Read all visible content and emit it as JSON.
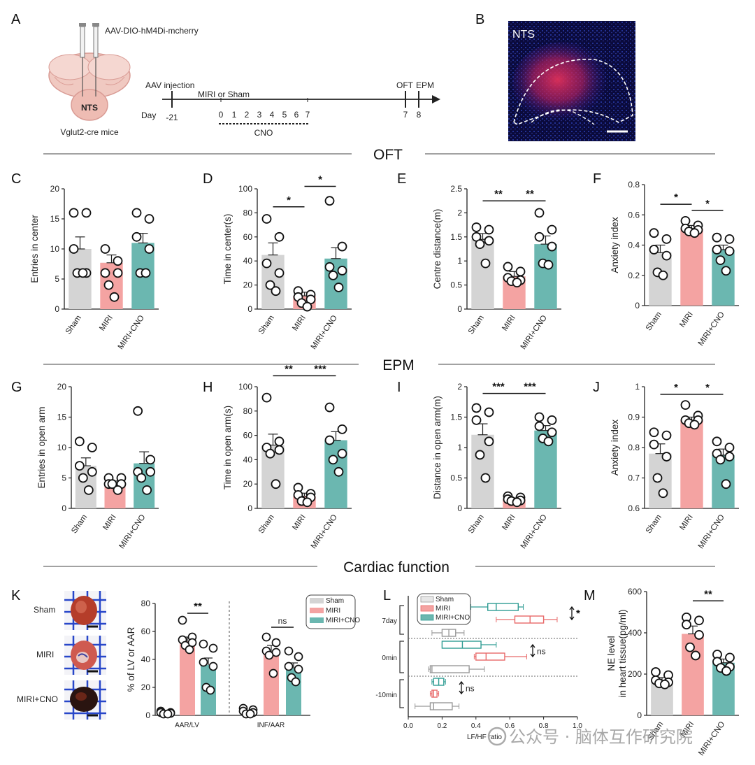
{
  "panel_letters": [
    "A",
    "B",
    "C",
    "D",
    "E",
    "F",
    "G",
    "H",
    "I",
    "J",
    "K",
    "L",
    "M"
  ],
  "sections": {
    "oft": "OFT",
    "epm": "EPM",
    "cardiac": "Cardiac function"
  },
  "schematic": {
    "virus": "AAV-DIO-hM4Di-mcherry",
    "region": "NTS",
    "mouse_line": "Vglut2-cre mice",
    "injection": "AAV injection",
    "model": "MIRI or Sham",
    "day_label": "Day",
    "days": [
      "-21",
      "0",
      "1",
      "2",
      "3",
      "4",
      "5",
      "6",
      "7",
      "7",
      "8"
    ],
    "cno": "CNO",
    "oft": "OFT",
    "epm": "EPM"
  },
  "micrograph": {
    "label": "NTS"
  },
  "heart_images": {
    "labels": [
      "Sham",
      "MIRI",
      "MIRI+CNO"
    ]
  },
  "colors": {
    "sham": "#d4d4d4",
    "miri": "#f4a3a2",
    "cno": "#6bb7b0",
    "miri_line": "#e86a6a",
    "cno_line": "#2f9c93",
    "axis": "#222222"
  },
  "watermark": "公众号 · 脑体互作研究院",
  "chart_data": [
    {
      "id": "C",
      "type": "bar",
      "categories": [
        "Sham",
        "MIRI",
        "MIRI+CNO"
      ],
      "ylabel": "Entries in center",
      "ylim": [
        0,
        20
      ],
      "yticks": [
        0,
        5,
        10,
        15,
        20
      ],
      "means": [
        10,
        7.7,
        11
      ],
      "sem": [
        2,
        1.3,
        1.6
      ],
      "points": [
        [
          16,
          16,
          10,
          6,
          6,
          6
        ],
        [
          10,
          8,
          6,
          6,
          4,
          2
        ],
        [
          16,
          15,
          12,
          10,
          6,
          6
        ]
      ],
      "sig": []
    },
    {
      "id": "D",
      "type": "bar",
      "categories": [
        "Sham",
        "MIRI",
        "MIRI+CNO"
      ],
      "ylabel": "Time in center(s)",
      "ylim": [
        0,
        100
      ],
      "yticks": [
        0,
        20,
        40,
        60,
        80,
        100
      ],
      "means": [
        45,
        11,
        42
      ],
      "sem": [
        10,
        3,
        9
      ],
      "points": [
        [
          75,
          60,
          38,
          30,
          20,
          15
        ],
        [
          15,
          12,
          10,
          8,
          5,
          2
        ],
        [
          90,
          52,
          35,
          32,
          28,
          18
        ]
      ],
      "sig": [
        {
          "from": 0,
          "to": 1,
          "label": "*",
          "y": 85
        },
        {
          "from": 1,
          "to": 2,
          "label": "*",
          "y": 102
        }
      ]
    },
    {
      "id": "E",
      "type": "bar",
      "categories": [
        "Sham",
        "MIRI",
        "MIRI+CNO"
      ],
      "ylabel": "Centre distance(m)",
      "ylim": [
        0,
        2.5
      ],
      "yticks": [
        0,
        0.5,
        1.0,
        1.5,
        2.0,
        2.5
      ],
      "means": [
        1.45,
        0.68,
        1.35
      ],
      "sem": [
        0.12,
        0.1,
        0.17
      ],
      "points": [
        [
          1.7,
          1.65,
          1.5,
          1.42,
          1.35,
          0.95
        ],
        [
          0.88,
          0.78,
          0.65,
          0.6,
          0.58,
          0.55
        ],
        [
          2.0,
          1.65,
          1.5,
          1.3,
          0.95,
          0.92
        ]
      ],
      "sig": [
        {
          "from": 0,
          "to": 1,
          "label": "**",
          "y": 2.25
        },
        {
          "from": 1,
          "to": 2,
          "label": "**",
          "y": 2.25
        }
      ]
    },
    {
      "id": "F",
      "type": "bar",
      "categories": [
        "Sham",
        "MIRI",
        "MIRI+CNO"
      ],
      "ylabel": "Anxiety index",
      "ylim": [
        0,
        0.8
      ],
      "yticks": [
        0,
        0.2,
        0.4,
        0.6,
        0.8
      ],
      "means": [
        0.35,
        0.51,
        0.37
      ],
      "sem": [
        0.05,
        0.02,
        0.03
      ],
      "points": [
        [
          0.48,
          0.44,
          0.37,
          0.33,
          0.22,
          0.2
        ],
        [
          0.56,
          0.53,
          0.51,
          0.5,
          0.49,
          0.48
        ],
        [
          0.45,
          0.44,
          0.37,
          0.36,
          0.3,
          0.23
        ]
      ],
      "sig": [
        {
          "from": 0,
          "to": 1,
          "label": "*",
          "y": 0.67
        },
        {
          "from": 1,
          "to": 2,
          "label": "*",
          "y": 0.63
        }
      ]
    },
    {
      "id": "G",
      "type": "bar",
      "categories": [
        "Sham",
        "MIRI",
        "MIRI+CNO"
      ],
      "ylabel": "Entries in open arm",
      "ylim": [
        0,
        20
      ],
      "yticks": [
        0,
        5,
        10,
        15,
        20
      ],
      "means": [
        7,
        4.1,
        7.4
      ],
      "sem": [
        1.3,
        0.4,
        1.9
      ],
      "points": [
        [
          11,
          10,
          7,
          6,
          5,
          3
        ],
        [
          5,
          5,
          4,
          4,
          4,
          3
        ],
        [
          16,
          8,
          6,
          6,
          5,
          3
        ]
      ],
      "sig": []
    },
    {
      "id": "H",
      "type": "bar",
      "categories": [
        "Sham",
        "MIRI",
        "MIRI+CNO"
      ],
      "ylabel": "Time in open arm(s)",
      "ylim": [
        0,
        100
      ],
      "yticks": [
        0,
        20,
        40,
        60,
        80,
        100
      ],
      "means": [
        52,
        10,
        56
      ],
      "sem": [
        9,
        2.5,
        7
      ],
      "points": [
        [
          91,
          55,
          50,
          48,
          45,
          20
        ],
        [
          17,
          12,
          11,
          9,
          6,
          5
        ],
        [
          83,
          65,
          56,
          45,
          40,
          30
        ]
      ],
      "sig": [
        {
          "from": 0,
          "to": 1,
          "label": "**",
          "y": 109
        },
        {
          "from": 1,
          "to": 2,
          "label": "***",
          "y": 109
        }
      ]
    },
    {
      "id": "I",
      "type": "bar",
      "categories": [
        "Sham",
        "MIRI",
        "MIRI+CNO"
      ],
      "ylabel": "Distance in open arm(m)",
      "ylim": [
        0,
        2.0
      ],
      "yticks": [
        0,
        0.5,
        1.0,
        1.5,
        2.0
      ],
      "means": [
        1.21,
        0.15,
        1.28
      ],
      "sem": [
        0.18,
        0.02,
        0.08
      ],
      "points": [
        [
          1.65,
          1.58,
          1.45,
          1.1,
          0.88,
          0.5
        ],
        [
          0.2,
          0.18,
          0.15,
          0.13,
          0.12,
          0.1
        ],
        [
          1.5,
          1.45,
          1.35,
          1.25,
          1.15,
          1.1
        ]
      ],
      "sig": [
        {
          "from": 0,
          "to": 1,
          "label": "***",
          "y": 1.89
        },
        {
          "from": 1,
          "to": 2,
          "label": "***",
          "y": 1.89
        }
      ]
    },
    {
      "id": "J",
      "type": "bar",
      "categories": [
        "Sham",
        "MIRI",
        "MIRI+CNO"
      ],
      "ylabel": "Anxiety index",
      "ylim": [
        0.6,
        1.0
      ],
      "yticks": [
        0.6,
        0.7,
        0.8,
        0.9,
        1.0
      ],
      "means": [
        0.78,
        0.89,
        0.775
      ],
      "sem": [
        0.032,
        0.01,
        0.02
      ],
      "points": [
        [
          0.85,
          0.84,
          0.81,
          0.77,
          0.7,
          0.65
        ],
        [
          0.94,
          0.905,
          0.89,
          0.89,
          0.88,
          0.875
        ],
        [
          0.82,
          0.8,
          0.78,
          0.77,
          0.76,
          0.68
        ]
      ],
      "sig": [
        {
          "from": 0,
          "to": 1,
          "label": "*",
          "y": 0.975
        },
        {
          "from": 1,
          "to": 2,
          "label": "*",
          "y": 0.975
        }
      ]
    },
    {
      "id": "K",
      "type": "bar",
      "groups": [
        "AAR/LV",
        "INF/AAR"
      ],
      "legend": [
        "Sham",
        "MIRI",
        "MIRI+CNO"
      ],
      "ylabel": "% of LV or AAR",
      "ylim": [
        0,
        80
      ],
      "yticks": [
        0,
        20,
        40,
        60,
        80
      ],
      "means": [
        [
          1.5,
          53,
          36
        ],
        [
          2,
          45,
          33.5
        ]
      ],
      "sem": [
        [
          0.5,
          3,
          5
        ],
        [
          0.8,
          5,
          4
        ]
      ],
      "points": [
        [
          [
            3,
            2,
            2,
            1.5,
            1,
            1
          ],
          [
            68,
            56,
            54,
            52,
            50,
            47
          ],
          [
            51,
            48,
            38,
            35,
            20,
            18
          ]
        ],
        [
          [
            5,
            4,
            3,
            2,
            1,
            1
          ],
          [
            56,
            52,
            46,
            45,
            43,
            30
          ],
          [
            46,
            42,
            35,
            33,
            27,
            24
          ]
        ]
      ],
      "sig": [
        {
          "group": 0,
          "label": "**",
          "y": 73
        },
        {
          "group": 1,
          "label": "ns",
          "y": 63
        }
      ]
    },
    {
      "id": "L",
      "type": "boxplot",
      "orientation": "horizontal",
      "xlabel": "LF/HF ratio",
      "xlim": [
        0,
        1.0
      ],
      "xticks": [
        0,
        0.2,
        0.4,
        0.6,
        0.8,
        1.0
      ],
      "timepoints": [
        "7day",
        "0min",
        "-10min"
      ],
      "legend": [
        "Sham",
        "MIRI",
        "MIRI+CNO"
      ],
      "boxes": [
        {
          "time": "7day",
          "group": "MIRI+CNO",
          "whisker": [
            0.37,
            0.68
          ],
          "q1": 0.47,
          "median": 0.52,
          "q3": 0.65
        },
        {
          "time": "7day",
          "group": "MIRI",
          "whisker": [
            0.52,
            0.88
          ],
          "q1": 0.63,
          "median": 0.72,
          "q3": 0.8
        },
        {
          "time": "7day",
          "group": "Sham",
          "whisker": [
            0.14,
            0.33
          ],
          "q1": 0.2,
          "median": 0.24,
          "q3": 0.28
        },
        {
          "time": "0min",
          "group": "MIRI+CNO",
          "whisker": [
            0.2,
            0.52
          ],
          "q1": 0.2,
          "median": 0.32,
          "q3": 0.43
        },
        {
          "time": "0min",
          "group": "MIRI",
          "whisker": [
            0.39,
            0.7
          ],
          "q1": 0.4,
          "median": 0.46,
          "q3": 0.57
        },
        {
          "time": "0min",
          "group": "Sham",
          "whisker": [
            0.12,
            0.45
          ],
          "q1": 0.13,
          "median": 0.14,
          "q3": 0.36
        },
        {
          "time": "-10min",
          "group": "MIRI+CNO",
          "whisker": [
            0.14,
            0.22
          ],
          "q1": 0.15,
          "median": 0.18,
          "q3": 0.21
        },
        {
          "time": "-10min",
          "group": "MIRI",
          "whisker": [
            0.13,
            0.18
          ],
          "q1": 0.14,
          "median": 0.15,
          "q3": 0.17
        },
        {
          "time": "-10min",
          "group": "Sham",
          "whisker": [
            0.04,
            0.3
          ],
          "q1": 0.13,
          "median": 0.15,
          "q3": 0.26
        }
      ],
      "sig": [
        "*",
        "ns",
        "ns"
      ]
    },
    {
      "id": "M",
      "type": "bar",
      "categories": [
        "Sham",
        "MIRI",
        "MIRI+CNO"
      ],
      "ylabel": "NE level\nin heart tissue(pg/ml)",
      "ylim": [
        0,
        600
      ],
      "yticks": [
        0,
        200,
        400,
        600
      ],
      "means": [
        168,
        395,
        255
      ],
      "sem": [
        15,
        38,
        18
      ],
      "points": [
        [
          210,
          195,
          170,
          160,
          155,
          150
        ],
        [
          475,
          460,
          440,
          390,
          330,
          290
        ],
        [
          295,
          280,
          260,
          235,
          230,
          215
        ]
      ],
      "sig": [
        {
          "from": 1,
          "to": 2,
          "label": "**",
          "y": 555
        }
      ]
    }
  ]
}
